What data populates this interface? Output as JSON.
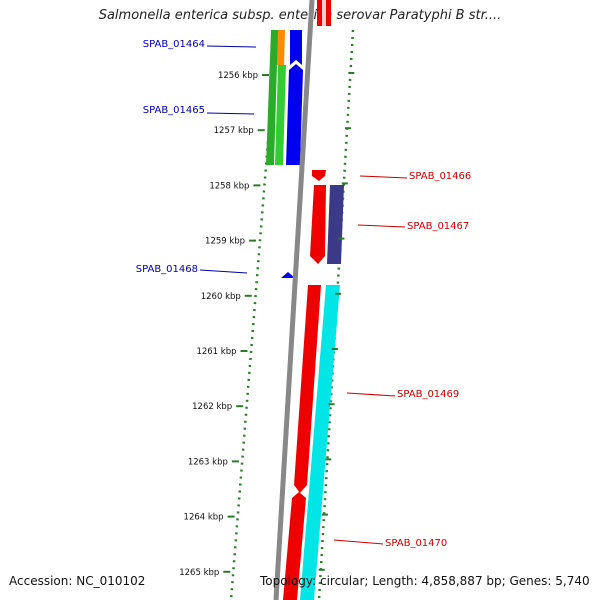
{
  "title": "Salmonella enterica subsp. enterica serovar Paratyphi B str....",
  "footer": {
    "accession": "Accession: NC_010102",
    "stats": "Topology: circular; Length: 4,858,887 bp; Genes: 5,740"
  },
  "colors": {
    "backbone": "#888888",
    "tick": "#2d7a2d",
    "forward_label": "#cc0000",
    "reverse_label": "#0000aa"
  },
  "axis": {
    "unit": "kbp",
    "ticks": [
      {
        "label": "1256 kbp"
      },
      {
        "label": "1257 kbp"
      },
      {
        "label": "1258 kbp"
      },
      {
        "label": "1259 kbp"
      },
      {
        "label": "1260 kbp"
      },
      {
        "label": "1261 kbp"
      },
      {
        "label": "1262 kbp"
      },
      {
        "label": "1263 kbp"
      },
      {
        "label": "1264 kbp"
      },
      {
        "label": "1265 kbp"
      }
    ]
  },
  "gene_labels": [
    {
      "name": "SPAB_01464",
      "strand": "reverse"
    },
    {
      "name": "SPAB_01465",
      "strand": "reverse"
    },
    {
      "name": "SPAB_01466",
      "strand": "forward"
    },
    {
      "name": "SPAB_01467",
      "strand": "forward"
    },
    {
      "name": "SPAB_01468",
      "strand": "reverse"
    },
    {
      "name": "SPAB_01469",
      "strand": "forward"
    },
    {
      "name": "SPAB_01470",
      "strand": "forward"
    }
  ]
}
